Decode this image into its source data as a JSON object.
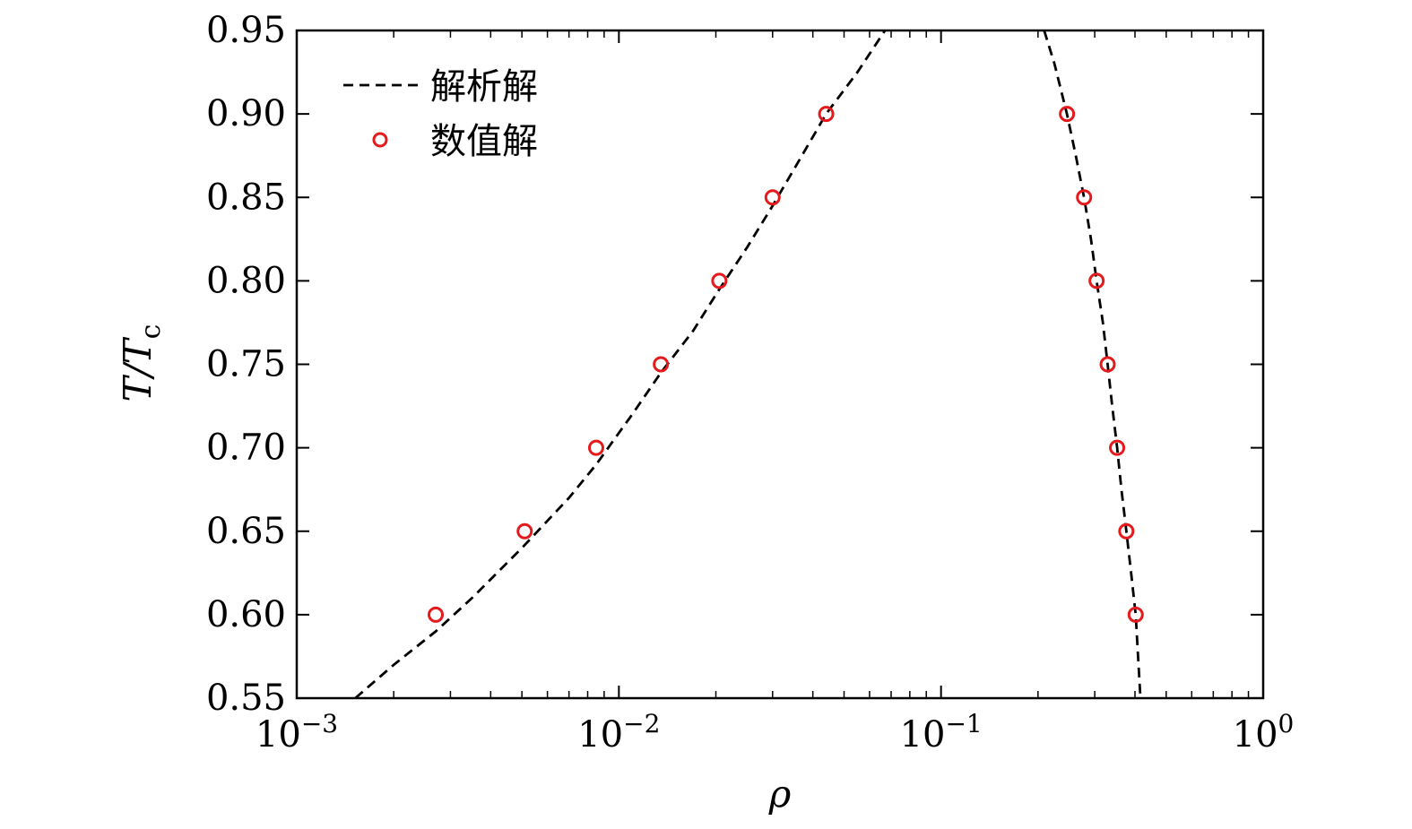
{
  "chart_data": {
    "type": "scatter",
    "xscale": "log",
    "xlim": [
      0.001,
      1
    ],
    "ylim": [
      0.55,
      0.95
    ],
    "x_ticks": [
      {
        "base": "10",
        "exp": "−3",
        "value": 0.001
      },
      {
        "base": "10",
        "exp": "−2",
        "value": 0.01
      },
      {
        "base": "10",
        "exp": "−1",
        "value": 0.1
      },
      {
        "base": "10",
        "exp": "0",
        "value": 1
      }
    ],
    "y_ticks": [
      "0.55",
      "0.60",
      "0.65",
      "0.70",
      "0.75",
      "0.80",
      "0.85",
      "0.90",
      "0.95"
    ],
    "xlabel": "ρ",
    "ylabel": {
      "main": "T/T",
      "sub": "c"
    },
    "legend_position": "top-left",
    "series": [
      {
        "name": "解析解",
        "style": "dashed-line",
        "color": "#000000",
        "left_branch": {
          "x": [
            0.00152,
            0.002,
            0.0027,
            0.0035,
            0.005,
            0.007,
            0.0085,
            0.011,
            0.0135,
            0.017,
            0.0205,
            0.025,
            0.03,
            0.037,
            0.044,
            0.055,
            0.067
          ],
          "y": [
            0.55,
            0.57,
            0.59,
            0.61,
            0.64,
            0.67,
            0.69,
            0.72,
            0.745,
            0.77,
            0.795,
            0.82,
            0.845,
            0.875,
            0.9,
            0.925,
            0.95
          ]
        },
        "right_branch": {
          "x": [
            0.209,
            0.225,
            0.246,
            0.262,
            0.278,
            0.292,
            0.304,
            0.318,
            0.329,
            0.34,
            0.352,
            0.363,
            0.376,
            0.389,
            0.402,
            0.416
          ],
          "y": [
            0.95,
            0.93,
            0.9,
            0.875,
            0.85,
            0.825,
            0.8,
            0.775,
            0.75,
            0.725,
            0.7,
            0.675,
            0.65,
            0.625,
            0.6,
            0.55
          ]
        }
      },
      {
        "name": "数值解",
        "style": "open-circle",
        "color": "#e41a1c",
        "points": [
          {
            "x": 0.0027,
            "y": 0.6
          },
          {
            "x": 0.0051,
            "y": 0.65
          },
          {
            "x": 0.0085,
            "y": 0.7
          },
          {
            "x": 0.0135,
            "y": 0.75
          },
          {
            "x": 0.0205,
            "y": 0.8
          },
          {
            "x": 0.03,
            "y": 0.85
          },
          {
            "x": 0.044,
            "y": 0.9
          },
          {
            "x": 0.246,
            "y": 0.9
          },
          {
            "x": 0.278,
            "y": 0.85
          },
          {
            "x": 0.304,
            "y": 0.8
          },
          {
            "x": 0.329,
            "y": 0.75
          },
          {
            "x": 0.352,
            "y": 0.7
          },
          {
            "x": 0.376,
            "y": 0.65
          },
          {
            "x": 0.402,
            "y": 0.6
          }
        ]
      }
    ]
  }
}
